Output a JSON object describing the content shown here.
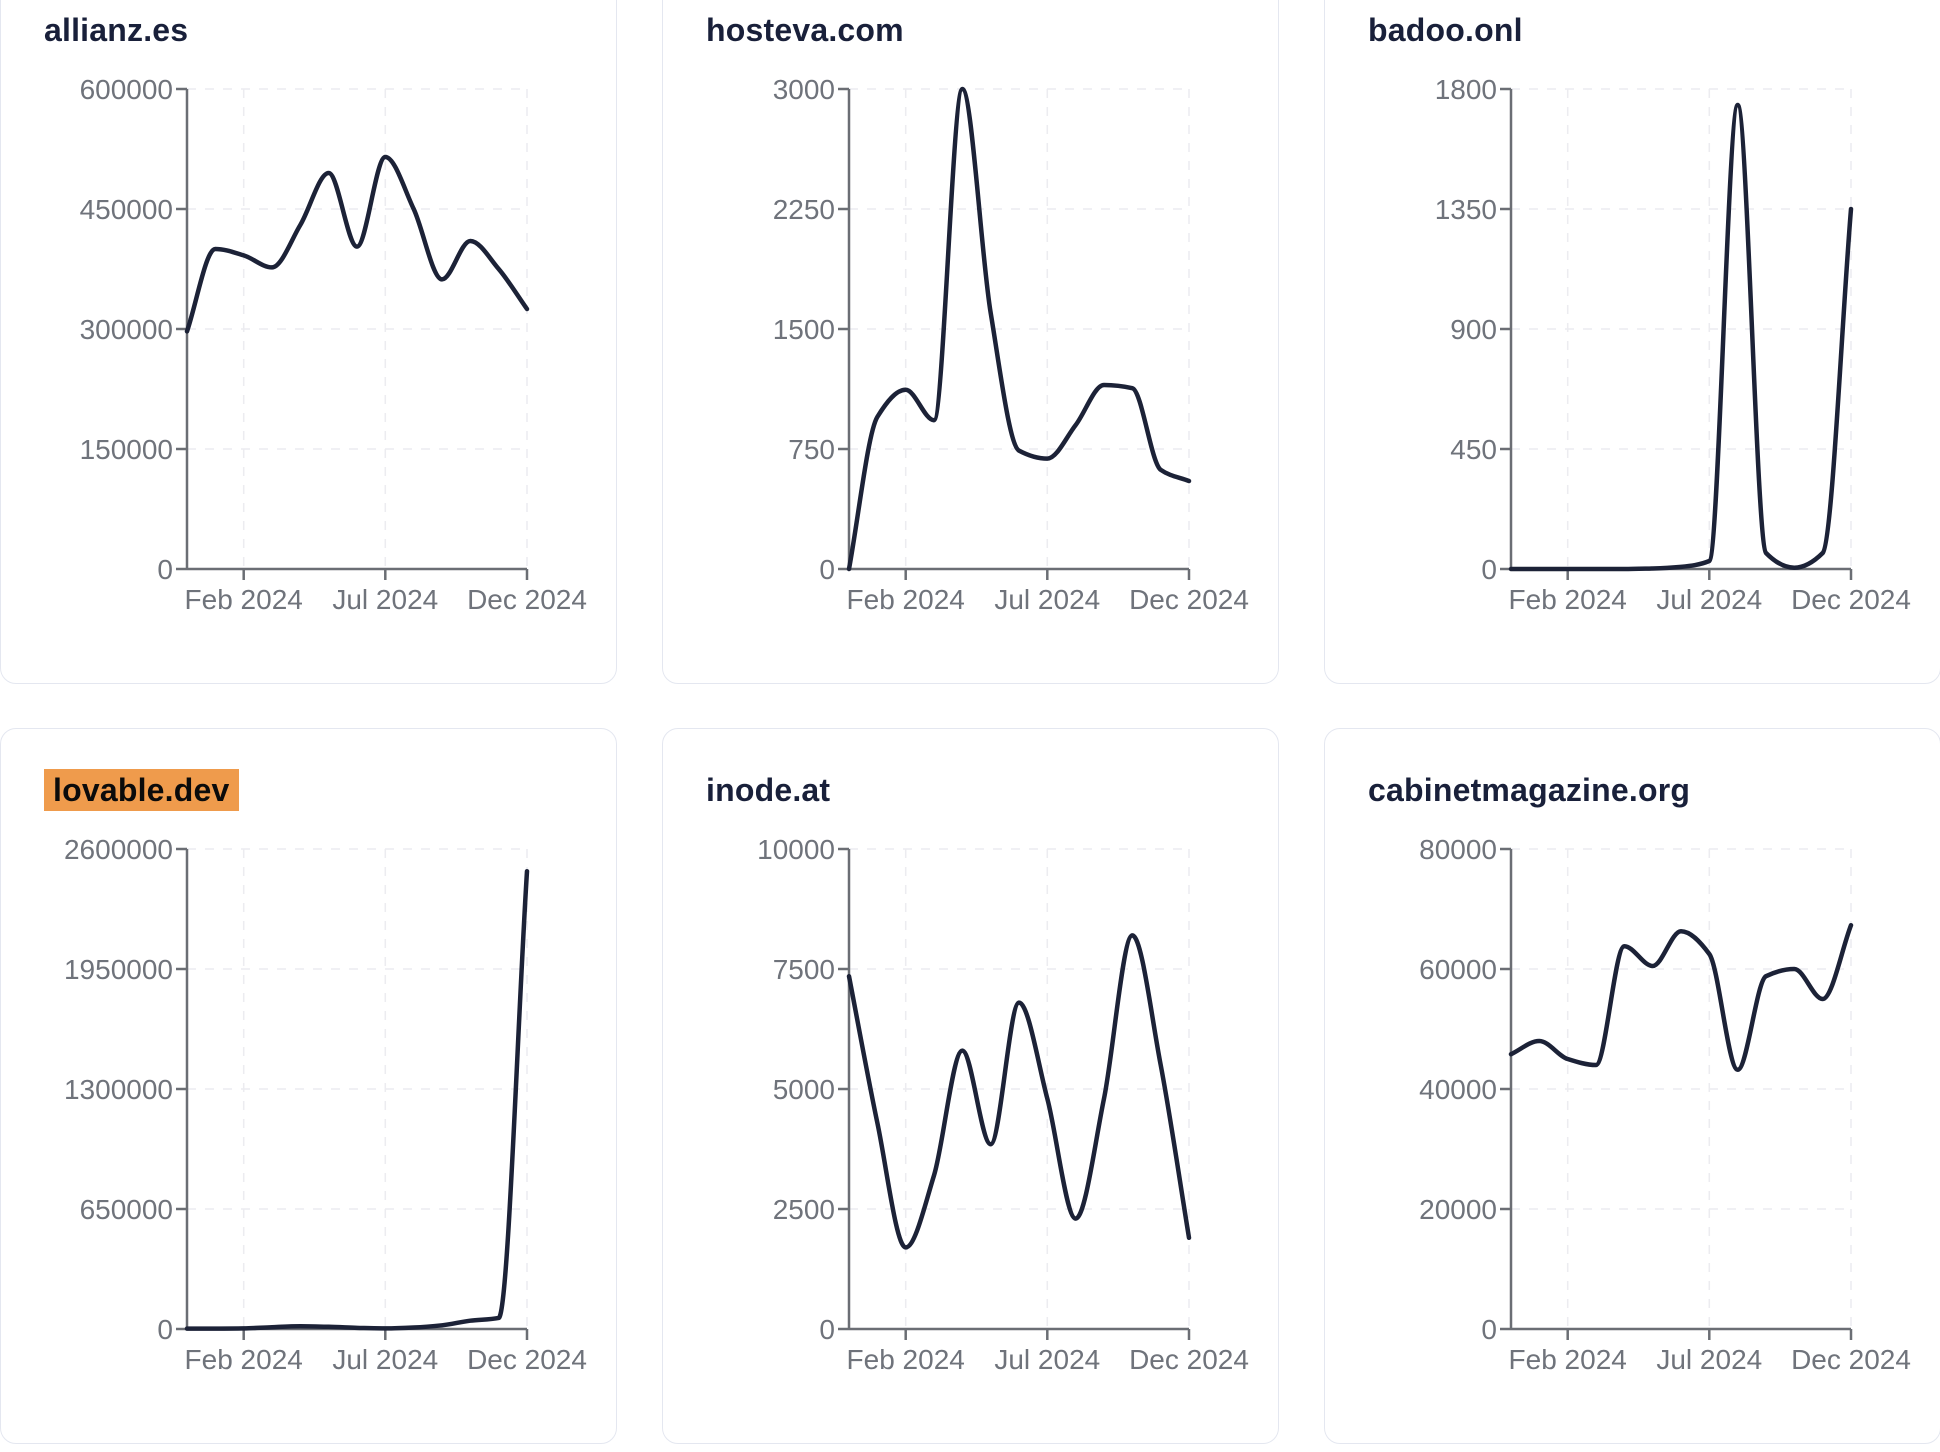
{
  "colors": {
    "background": "#ffffff",
    "card_background": "#ffffff",
    "card_border": "#e4e7f0",
    "title": "#19203a",
    "line": "#1c2237",
    "axis": "#6b6e74",
    "tick_label": "#6f737b",
    "gridline": "#ececf0",
    "highlight_background": "#ef9b4c",
    "highlight_text": "#0b0b0b"
  },
  "cards": [
    {
      "title": "allianz.es",
      "highlighted": false
    },
    {
      "title": "hosteva.com",
      "highlighted": false
    },
    {
      "title": "badoo.onl",
      "highlighted": false
    },
    {
      "title": "lovable.dev",
      "highlighted": true
    },
    {
      "title": "inode.at",
      "highlighted": false
    },
    {
      "title": "cabinetmagazine.org",
      "highlighted": false
    }
  ],
  "chart_data": [
    {
      "type": "line",
      "title": "allianz.es",
      "x": [
        "Dec 2023",
        "Jan 2024",
        "Feb 2024",
        "Mar 2024",
        "Apr 2024",
        "May 2024",
        "Jun 2024",
        "Jul 2024",
        "Aug 2024",
        "Sep 2024",
        "Oct 2024",
        "Nov 2024",
        "Dec 2024"
      ],
      "values": [
        297000,
        400000,
        392000,
        377000,
        430000,
        495000,
        403000,
        515000,
        450000,
        362000,
        410000,
        375000,
        325000
      ],
      "ylim": [
        0,
        600000
      ],
      "y_ticks": [
        0,
        150000,
        300000,
        450000,
        600000
      ],
      "y_tick_labels": [
        "0",
        "150000",
        "300000",
        "450000",
        "600000"
      ],
      "x_tick_labels": [
        "Feb 2024",
        "Jul 2024",
        "Dec 2024"
      ],
      "x_tick_positions": [
        2,
        7,
        12
      ],
      "grid": "dashed",
      "legend": "none"
    },
    {
      "type": "line",
      "title": "hosteva.com",
      "x": [
        "Dec 2023",
        "Jan 2024",
        "Feb 2024",
        "Mar 2024",
        "Apr 2024",
        "May 2024",
        "Jun 2024",
        "Jul 2024",
        "Aug 2024",
        "Sep 2024",
        "Oct 2024",
        "Nov 2024",
        "Dec 2024"
      ],
      "values": [
        0,
        950,
        1120,
        930,
        3000,
        1600,
        740,
        690,
        900,
        1150,
        1130,
        620,
        550
      ],
      "ylim": [
        0,
        3000
      ],
      "y_ticks": [
        0,
        750,
        1500,
        2250,
        3000
      ],
      "y_tick_labels": [
        "0",
        "750",
        "1500",
        "2250",
        "3000"
      ],
      "x_tick_labels": [
        "Feb 2024",
        "Jul 2024",
        "Dec 2024"
      ],
      "x_tick_positions": [
        2,
        7,
        12
      ],
      "grid": "dashed",
      "legend": "none"
    },
    {
      "type": "line",
      "title": "badoo.onl",
      "x": [
        "Dec 2023",
        "Jan 2024",
        "Feb 2024",
        "Mar 2024",
        "Apr 2024",
        "May 2024",
        "Jun 2024",
        "Jul 2024",
        "Aug 2024",
        "Sep 2024",
        "Oct 2024",
        "Nov 2024",
        "Dec 2024"
      ],
      "values": [
        0,
        0,
        0,
        0,
        0,
        2,
        8,
        30,
        1740,
        60,
        5,
        60,
        1350
      ],
      "ylim": [
        0,
        1800
      ],
      "y_ticks": [
        0,
        450,
        900,
        1350,
        1800
      ],
      "y_tick_labels": [
        "0",
        "450",
        "900",
        "1350",
        "1800"
      ],
      "x_tick_labels": [
        "Feb 2024",
        "Jul 2024",
        "Dec 2024"
      ],
      "x_tick_positions": [
        2,
        7,
        12
      ],
      "grid": "dashed",
      "legend": "none"
    },
    {
      "type": "line",
      "title": "lovable.dev",
      "x": [
        "Dec 2023",
        "Jan 2024",
        "Feb 2024",
        "Mar 2024",
        "Apr 2024",
        "May 2024",
        "Jun 2024",
        "Jul 2024",
        "Aug 2024",
        "Sep 2024",
        "Oct 2024",
        "Nov 2024",
        "Dec 2024"
      ],
      "values": [
        2000,
        2000,
        3000,
        10000,
        15000,
        12000,
        6000,
        3000,
        8000,
        20000,
        45000,
        60000,
        2480000
      ],
      "ylim": [
        0,
        2600000
      ],
      "y_ticks": [
        0,
        650000,
        1300000,
        1950000,
        2600000
      ],
      "y_tick_labels": [
        "0",
        "650000",
        "1300000",
        "1950000",
        "2600000"
      ],
      "x_tick_labels": [
        "Feb 2024",
        "Jul 2024",
        "Dec 2024"
      ],
      "x_tick_positions": [
        2,
        7,
        12
      ],
      "grid": "dashed",
      "legend": "none"
    },
    {
      "type": "line",
      "title": "inode.at",
      "x": [
        "Dec 2023",
        "Jan 2024",
        "Feb 2024",
        "Mar 2024",
        "Apr 2024",
        "May 2024",
        "Jun 2024",
        "Jul 2024",
        "Aug 2024",
        "Sep 2024",
        "Oct 2024",
        "Nov 2024",
        "Dec 2024"
      ],
      "values": [
        7350,
        4300,
        1700,
        3200,
        5800,
        3850,
        6800,
        4800,
        2300,
        4800,
        8200,
        5500,
        1900
      ],
      "ylim": [
        0,
        10000
      ],
      "y_ticks": [
        0,
        2500,
        5000,
        7500,
        10000
      ],
      "y_tick_labels": [
        "0",
        "2500",
        "5000",
        "7500",
        "10000"
      ],
      "x_tick_labels": [
        "Feb 2024",
        "Jul 2024",
        "Dec 2024"
      ],
      "x_tick_positions": [
        2,
        7,
        12
      ],
      "grid": "dashed",
      "legend": "none"
    },
    {
      "type": "line",
      "title": "cabinetmagazine.org",
      "x": [
        "Dec 2023",
        "Jan 2024",
        "Feb 2024",
        "Mar 2024",
        "Apr 2024",
        "May 2024",
        "Jun 2024",
        "Jul 2024",
        "Aug 2024",
        "Sep 2024",
        "Oct 2024",
        "Nov 2024",
        "Dec 2024"
      ],
      "values": [
        45800,
        48000,
        45000,
        44000,
        63800,
        60500,
        66300,
        62500,
        43200,
        58800,
        60000,
        55000,
        67300
      ],
      "ylim": [
        0,
        80000
      ],
      "y_ticks": [
        0,
        20000,
        40000,
        60000,
        80000
      ],
      "y_tick_labels": [
        "0",
        "20000",
        "40000",
        "60000",
        "80000"
      ],
      "x_tick_labels": [
        "Feb 2024",
        "Jul 2024",
        "Dec 2024"
      ],
      "x_tick_positions": [
        2,
        7,
        12
      ],
      "grid": "dashed",
      "legend": "none"
    }
  ]
}
